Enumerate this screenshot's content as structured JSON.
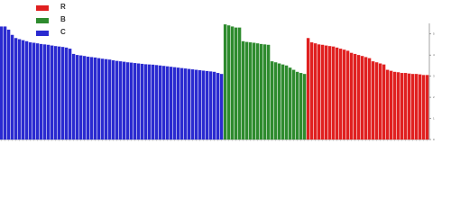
{
  "chart_data": {
    "type": "bar",
    "ylim": [
      0,
      5.5
    ],
    "yticks": [
      0,
      1,
      2,
      3,
      4,
      5
    ],
    "legend": "top-left",
    "series": [
      {
        "name": "C",
        "color": "#2a2ad0",
        "values": [
          5.35,
          5.35,
          5.2,
          4.95,
          4.8,
          4.75,
          4.7,
          4.65,
          4.6,
          4.58,
          4.55,
          4.52,
          4.5,
          4.48,
          4.45,
          4.42,
          4.4,
          4.38,
          4.35,
          4.3,
          4.05,
          4.0,
          3.98,
          3.95,
          3.92,
          3.9,
          3.88,
          3.85,
          3.82,
          3.8,
          3.78,
          3.75,
          3.72,
          3.7,
          3.68,
          3.65,
          3.64,
          3.62,
          3.6,
          3.58,
          3.56,
          3.55,
          3.54,
          3.52,
          3.5,
          3.48,
          3.46,
          3.44,
          3.42,
          3.4,
          3.38,
          3.36,
          3.34,
          3.32,
          3.3,
          3.28,
          3.26,
          3.24,
          3.22,
          3.2,
          3.15,
          3.1
        ]
      },
      {
        "name": "B",
        "color": "#2e8b2e",
        "values": [
          5.45,
          5.4,
          5.35,
          5.3,
          5.3,
          4.65,
          4.62,
          4.6,
          4.58,
          4.55,
          4.52,
          4.5,
          4.48,
          3.7,
          3.65,
          3.6,
          3.55,
          3.5,
          3.4,
          3.3,
          3.2,
          3.15,
          3.1
        ]
      },
      {
        "name": "R",
        "color": "#e02020",
        "values": [
          4.8,
          4.6,
          4.55,
          4.5,
          4.48,
          4.45,
          4.42,
          4.4,
          4.35,
          4.3,
          4.25,
          4.2,
          4.1,
          4.05,
          4.0,
          3.95,
          3.9,
          3.85,
          3.7,
          3.65,
          3.6,
          3.55,
          3.3,
          3.25,
          3.2,
          3.18,
          3.15,
          3.15,
          3.12,
          3.1,
          3.1,
          3.08,
          3.05,
          3.05
        ]
      }
    ]
  }
}
